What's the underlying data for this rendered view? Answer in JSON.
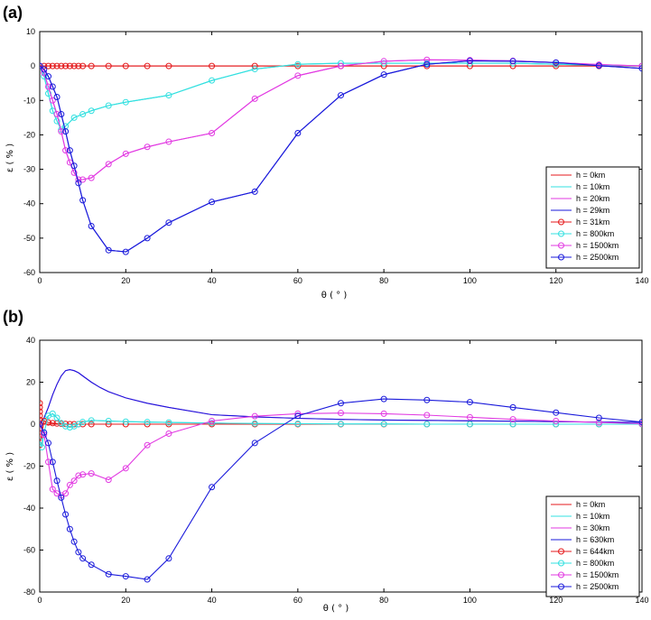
{
  "colors": {
    "red": "#e41a1c",
    "cyan": "#33e0e0",
    "magenta": "#e23ae2",
    "blue": "#1a1adb"
  },
  "chart_data": [
    {
      "type": "line",
      "panel_label": "(a)",
      "xlabel": "θ ( ° )",
      "ylabel": "ε ( % )",
      "xlim": [
        0,
        140
      ],
      "ylim": [
        -60,
        10
      ],
      "xticks": [
        0,
        20,
        40,
        60,
        80,
        100,
        120,
        140
      ],
      "yticks": [
        10,
        0,
        -10,
        -20,
        -30,
        -40,
        -50,
        -60
      ],
      "grid": false,
      "legend_position": "bottom-right",
      "series": [
        {
          "name": "h = 0km",
          "color": "red",
          "marker": "none",
          "x": [
            0,
            140
          ],
          "y": [
            0,
            0
          ]
        },
        {
          "name": "h = 10km",
          "color": "cyan",
          "marker": "none",
          "x": [
            0,
            1,
            2,
            3,
            4,
            5,
            6,
            8,
            10,
            12,
            16,
            20,
            30,
            40,
            50,
            60,
            70,
            80,
            90,
            100,
            110,
            120,
            130,
            140
          ],
          "y": [
            0,
            -3,
            -8,
            -13,
            -16,
            -18.5,
            -17.5,
            -15,
            -14,
            -13,
            -11.5,
            -10.5,
            -8.5,
            -4.2,
            -0.9,
            0.5,
            0.8,
            0.8,
            0.8,
            0.8,
            0.8,
            0.5,
            0.2,
            0
          ]
        },
        {
          "name": "h = 20km",
          "color": "magenta",
          "marker": "none",
          "x": [
            0,
            1,
            2,
            3,
            4,
            5,
            6,
            7,
            8,
            9,
            10,
            12,
            16,
            20,
            25,
            30,
            40,
            50,
            60,
            70,
            80,
            90,
            100,
            110,
            120,
            130,
            140
          ],
          "y": [
            0,
            -2,
            -6,
            -10,
            -14,
            -19,
            -24.5,
            -28,
            -31,
            -33,
            -33,
            -32.5,
            -28.5,
            -25.5,
            -23.5,
            -22,
            -19.5,
            -9.5,
            -2.8,
            0,
            1.4,
            1.8,
            1.7,
            1.5,
            1,
            0.4,
            0
          ]
        },
        {
          "name": "h = 29km",
          "color": "blue",
          "marker": "none",
          "x": [
            0,
            1,
            2,
            3,
            4,
            5,
            6,
            7,
            8,
            9,
            10,
            12,
            16,
            20,
            25,
            30,
            40,
            50,
            60,
            70,
            80,
            90,
            100,
            110,
            120,
            130,
            140
          ],
          "y": [
            0,
            -1,
            -3,
            -6,
            -9,
            -14,
            -19,
            -24.5,
            -29,
            -34,
            -39,
            -46.5,
            -53.5,
            -54,
            -50,
            -45.5,
            -39.5,
            -36.5,
            -19.5,
            -8.5,
            -2.5,
            0.5,
            1.5,
            1.4,
            1,
            0.1,
            -0.7
          ]
        },
        {
          "name": "h = 31km",
          "color": "red",
          "marker": "circle",
          "x": [
            0,
            1,
            2,
            3,
            4,
            5,
            6,
            7,
            8,
            9,
            10,
            12,
            16,
            20,
            25,
            30,
            40,
            50,
            60,
            70,
            80,
            90,
            100,
            110,
            120,
            130,
            140
          ],
          "y": [
            0,
            0,
            0,
            0,
            0,
            0,
            0,
            0,
            0,
            0,
            0,
            0,
            0,
            0,
            0,
            0,
            0,
            0,
            0,
            0,
            0,
            0,
            0,
            0,
            0,
            0,
            0
          ]
        },
        {
          "name": "h = 800km",
          "color": "cyan",
          "marker": "circle",
          "x": [
            0,
            1,
            2,
            3,
            4,
            5,
            6,
            8,
            10,
            12,
            16,
            20,
            30,
            40,
            50,
            60,
            70,
            80,
            90,
            100,
            110,
            120,
            130,
            140
          ],
          "y": [
            0,
            -3,
            -8,
            -13,
            -16,
            -18.5,
            -17.5,
            -15,
            -14,
            -13,
            -11.5,
            -10.5,
            -8.5,
            -4.2,
            -0.9,
            0.5,
            0.8,
            0.8,
            0.8,
            0.8,
            0.8,
            0.5,
            0.2,
            0
          ]
        },
        {
          "name": "h = 1500km",
          "color": "magenta",
          "marker": "circle",
          "x": [
            0,
            1,
            2,
            3,
            4,
            5,
            6,
            7,
            8,
            9,
            10,
            12,
            16,
            20,
            25,
            30,
            40,
            50,
            60,
            70,
            80,
            90,
            100,
            110,
            120,
            130,
            140
          ],
          "y": [
            0,
            -2,
            -6,
            -10,
            -14,
            -19,
            -24.5,
            -28,
            -31,
            -33,
            -33,
            -32.5,
            -28.5,
            -25.5,
            -23.5,
            -22,
            -19.5,
            -9.5,
            -2.8,
            0,
            1.4,
            1.8,
            1.7,
            1.5,
            1,
            0.4,
            0
          ]
        },
        {
          "name": "h = 2500km",
          "color": "blue",
          "marker": "circle",
          "x": [
            0,
            1,
            2,
            3,
            4,
            5,
            6,
            7,
            8,
            9,
            10,
            12,
            16,
            20,
            25,
            30,
            40,
            50,
            60,
            70,
            80,
            90,
            100,
            110,
            120,
            130,
            140
          ],
          "y": [
            0,
            -1,
            -3,
            -6,
            -9,
            -14,
            -19,
            -24.5,
            -29,
            -34,
            -39,
            -46.5,
            -53.5,
            -54,
            -50,
            -45.5,
            -39.5,
            -36.5,
            -19.5,
            -8.5,
            -2.5,
            0.5,
            1.5,
            1.4,
            1,
            0.1,
            -0.7
          ]
        }
      ]
    },
    {
      "type": "line",
      "panel_label": "(b)",
      "xlabel": "θ ( ° )",
      "ylabel": "ε ( % )",
      "xlim": [
        0,
        140
      ],
      "ylim": [
        -80,
        40
      ],
      "xticks": [
        0,
        20,
        40,
        60,
        80,
        100,
        120,
        140
      ],
      "yticks": [
        40,
        20,
        0,
        -20,
        -40,
        -60,
        -80
      ],
      "grid": false,
      "legend_position": "bottom-right",
      "series": [
        {
          "name": "h = 0km",
          "color": "red",
          "marker": "none",
          "x": [
            0,
            140
          ],
          "y": [
            0,
            0
          ]
        },
        {
          "name": "h = 10km",
          "color": "cyan",
          "marker": "none",
          "x": [
            0,
            2,
            3,
            4,
            5,
            6,
            7,
            8,
            9,
            10,
            12,
            16,
            20,
            25,
            30,
            40,
            50,
            60,
            70,
            80,
            90,
            100,
            110,
            120,
            130,
            140
          ],
          "y": [
            0,
            4,
            5,
            3,
            0.5,
            -1,
            -1.5,
            -1,
            0,
            1,
            1.8,
            1.5,
            1.2,
            1,
            0.8,
            0.5,
            0.3,
            0.2,
            0.1,
            0.1,
            0,
            0,
            0,
            0,
            0,
            0
          ]
        },
        {
          "name": "h = 30km",
          "color": "magenta",
          "marker": "none",
          "x": [
            0,
            1,
            2,
            3,
            4,
            5,
            6,
            7,
            8,
            9,
            10,
            12,
            14,
            16,
            20,
            25,
            30,
            40,
            50,
            60,
            70,
            80,
            90,
            100,
            110,
            120,
            130,
            140
          ],
          "y": [
            0,
            3,
            8,
            14,
            19,
            23,
            25.5,
            26,
            25.5,
            24.5,
            23,
            20,
            17.5,
            15.5,
            12.5,
            10,
            8,
            4.5,
            3.5,
            2.8,
            2.3,
            2,
            1.8,
            1.6,
            1.4,
            1.2,
            1,
            0.8
          ]
        },
        {
          "name": "h = 630km",
          "color": "blue",
          "marker": "none",
          "x": [
            0,
            1,
            2,
            3,
            4,
            5,
            6,
            7,
            8,
            9,
            10,
            12,
            14,
            16,
            20,
            25,
            30,
            40,
            50,
            60,
            70,
            80,
            90,
            100,
            110,
            120,
            130,
            140
          ],
          "y": [
            0,
            3,
            8,
            14,
            19,
            23,
            25.5,
            26,
            25.5,
            24.5,
            23,
            20,
            17.5,
            15.5,
            12.5,
            10,
            8,
            4.5,
            3.5,
            2.8,
            2.3,
            2,
            1.8,
            1.6,
            1.4,
            1.2,
            1,
            0.8
          ]
        },
        {
          "name": "h = 644km",
          "color": "red",
          "marker": "circle",
          "x": [
            0,
            0,
            0,
            0,
            0,
            0,
            0,
            0,
            1,
            2,
            3,
            4,
            5,
            6,
            7,
            8,
            9,
            10,
            12,
            16,
            20,
            25,
            30,
            40,
            50,
            60,
            70,
            80,
            90,
            100,
            110,
            120,
            130,
            140
          ],
          "y": [
            10,
            8,
            6,
            4,
            2,
            -2,
            -6,
            -10,
            1.5,
            0.8,
            0.5,
            0.3,
            0.2,
            0.1,
            0,
            0,
            0,
            0,
            0,
            0,
            0,
            0,
            0,
            0,
            0,
            0,
            0,
            0,
            0,
            0,
            0,
            0,
            0,
            0
          ]
        },
        {
          "name": "h = 800km",
          "color": "cyan",
          "marker": "circle",
          "x": [
            0,
            0.5,
            1,
            2,
            3,
            4,
            5,
            6,
            7,
            8,
            9,
            10,
            12,
            16,
            20,
            25,
            30,
            40,
            50,
            60,
            70,
            80,
            90,
            100,
            110,
            120,
            130,
            140
          ],
          "y": [
            -8,
            -11,
            -4,
            4,
            5,
            3,
            0.5,
            -1,
            -1.5,
            -1,
            0,
            1,
            1.8,
            1.5,
            1.2,
            1,
            0.8,
            0.5,
            0.3,
            0.2,
            0.1,
            0.1,
            0,
            0,
            0,
            0,
            0,
            0
          ]
        },
        {
          "name": "h = 1500km",
          "color": "magenta",
          "marker": "circle",
          "x": [
            0,
            1,
            2,
            3,
            4,
            5,
            6,
            7,
            8,
            9,
            10,
            12,
            16,
            20,
            25,
            30,
            40,
            50,
            60,
            70,
            80,
            90,
            100,
            110,
            120,
            130,
            140
          ],
          "y": [
            0,
            -5,
            -18,
            -31,
            -33,
            -34,
            -33,
            -29,
            -27,
            -24.5,
            -24,
            -23.5,
            -26.5,
            -21,
            -10,
            -4.5,
            1.5,
            3.8,
            5,
            5.3,
            5,
            4.3,
            3.3,
            2.3,
            1.5,
            0.8,
            0.2
          ]
        },
        {
          "name": "h = 2500km",
          "color": "blue",
          "marker": "circle",
          "x": [
            0,
            1,
            2,
            3,
            4,
            5,
            6,
            7,
            8,
            9,
            10,
            12,
            16,
            20,
            25,
            30,
            40,
            50,
            60,
            70,
            80,
            90,
            100,
            110,
            120,
            130,
            140
          ],
          "y": [
            0,
            -4,
            -9,
            -18,
            -27,
            -35,
            -43,
            -50,
            -56,
            -61,
            -64,
            -67,
            -71.5,
            -72.5,
            -74,
            -64,
            -30,
            -9,
            4,
            10,
            12,
            11.5,
            10.5,
            8,
            5.5,
            3,
            1
          ]
        }
      ]
    }
  ]
}
